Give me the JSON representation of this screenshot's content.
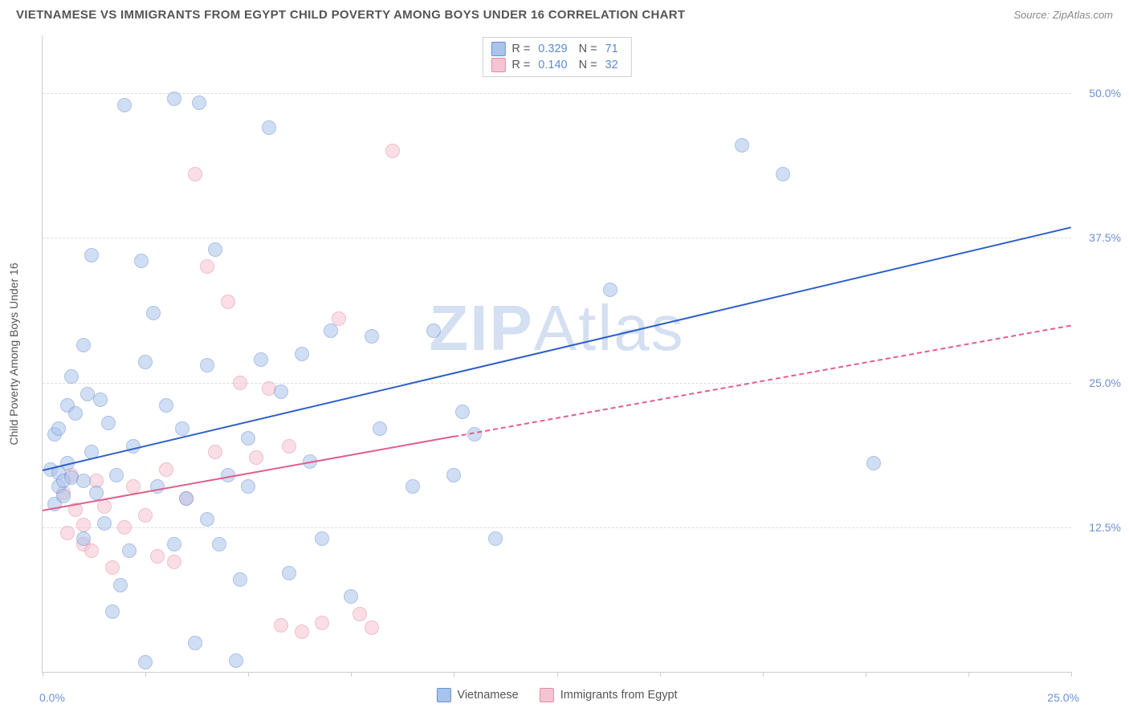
{
  "header": {
    "title": "VIETNAMESE VS IMMIGRANTS FROM EGYPT CHILD POVERTY AMONG BOYS UNDER 16 CORRELATION CHART",
    "source": "Source: ZipAtlas.com"
  },
  "chart": {
    "type": "scatter",
    "background_color": "#ffffff",
    "grid_color": "#dddddd",
    "axis_color": "#cccccc",
    "tick_label_color": "#6b8fd4",
    "axis_title_color": "#555555",
    "y_axis_title": "Child Poverty Among Boys Under 16",
    "xlim": [
      0,
      25
    ],
    "ylim": [
      0,
      55
    ],
    "x_ticks": [
      0,
      2.5,
      5,
      7.5,
      10,
      12.5,
      15,
      17.5,
      20,
      22.5,
      25
    ],
    "x_origin_label": "0.0%",
    "x_max_label": "25.0%",
    "y_gridlines": [
      12.5,
      25.0,
      37.5,
      50.0
    ],
    "y_tick_labels": [
      "12.5%",
      "25.0%",
      "37.5%",
      "50.0%"
    ],
    "point_radius": 9,
    "point_opacity": 0.55,
    "font_family": "Arial, sans-serif",
    "title_fontsize": 15,
    "label_fontsize": 14
  },
  "series": {
    "vietnamese": {
      "label": "Vietnamese",
      "fill_color": "#a9c4eb",
      "stroke_color": "#6b8fd4",
      "trend_color": "#2e5fc9",
      "trend_width": 2.5,
      "trend": {
        "x1": 0,
        "y1": 17.5,
        "x2": 25,
        "y2": 38.5,
        "dashed_from_x": null
      },
      "R": "0.329",
      "N": "71",
      "points": [
        [
          0.2,
          17.5
        ],
        [
          0.3,
          14.5
        ],
        [
          0.3,
          20.5
        ],
        [
          0.4,
          16.0
        ],
        [
          0.4,
          17.2
        ],
        [
          0.4,
          21.0
        ],
        [
          0.5,
          15.2
        ],
        [
          0.5,
          16.5
        ],
        [
          0.6,
          18.0
        ],
        [
          0.6,
          23.0
        ],
        [
          0.7,
          25.5
        ],
        [
          0.7,
          16.8
        ],
        [
          0.8,
          22.3
        ],
        [
          1.0,
          28.2
        ],
        [
          1.0,
          16.5
        ],
        [
          1.0,
          11.5
        ],
        [
          1.1,
          24.0
        ],
        [
          1.2,
          36.0
        ],
        [
          1.2,
          19.0
        ],
        [
          1.3,
          15.5
        ],
        [
          1.4,
          23.5
        ],
        [
          1.5,
          12.8
        ],
        [
          1.6,
          21.5
        ],
        [
          1.7,
          5.2
        ],
        [
          1.8,
          17.0
        ],
        [
          2.0,
          49.0
        ],
        [
          2.1,
          10.5
        ],
        [
          2.2,
          19.5
        ],
        [
          2.4,
          35.5
        ],
        [
          2.5,
          26.8
        ],
        [
          2.5,
          0.8
        ],
        [
          2.7,
          31.0
        ],
        [
          3.0,
          23.0
        ],
        [
          3.2,
          49.5
        ],
        [
          3.2,
          11.0
        ],
        [
          3.4,
          21.0
        ],
        [
          3.5,
          15.0
        ],
        [
          3.7,
          2.5
        ],
        [
          3.8,
          49.2
        ],
        [
          4.0,
          26.5
        ],
        [
          4.0,
          13.2
        ],
        [
          4.3,
          11.0
        ],
        [
          4.5,
          17.0
        ],
        [
          4.7,
          1.0
        ],
        [
          4.8,
          8.0
        ],
        [
          5.0,
          16.0
        ],
        [
          5.0,
          20.2
        ],
        [
          5.3,
          27.0
        ],
        [
          5.5,
          47.0
        ],
        [
          5.8,
          24.2
        ],
        [
          6.0,
          8.5
        ],
        [
          6.3,
          27.5
        ],
        [
          6.5,
          18.2
        ],
        [
          6.8,
          11.5
        ],
        [
          7.0,
          29.5
        ],
        [
          7.5,
          6.5
        ],
        [
          8.0,
          29.0
        ],
        [
          8.2,
          21.0
        ],
        [
          9.0,
          16.0
        ],
        [
          9.5,
          29.5
        ],
        [
          10.0,
          17.0
        ],
        [
          10.2,
          22.5
        ],
        [
          10.5,
          20.5
        ],
        [
          11.0,
          11.5
        ],
        [
          13.8,
          33.0
        ],
        [
          17.0,
          45.5
        ],
        [
          18.0,
          43.0
        ],
        [
          20.2,
          18.0
        ],
        [
          4.2,
          36.5
        ],
        [
          2.8,
          16.0
        ],
        [
          1.9,
          7.5
        ]
      ]
    },
    "egypt": {
      "label": "Immigants from Egypt",
      "label_display": "Immigrants from Egypt",
      "fill_color": "#f5c4d2",
      "stroke_color": "#e48aa4",
      "trend_color": "#e06088",
      "trend_width": 2,
      "trend": {
        "x1": 0,
        "y1": 14.0,
        "x2": 25,
        "y2": 30.0,
        "dashed_from_x": 10.0
      },
      "R": "0.140",
      "N": "32",
      "points": [
        [
          0.5,
          15.5
        ],
        [
          0.6,
          12.0
        ],
        [
          0.7,
          17.0
        ],
        [
          0.8,
          14.0
        ],
        [
          1.0,
          11.0
        ],
        [
          1.0,
          12.7
        ],
        [
          1.2,
          10.5
        ],
        [
          1.3,
          16.5
        ],
        [
          1.5,
          14.3
        ],
        [
          1.7,
          9.0
        ],
        [
          2.0,
          12.5
        ],
        [
          2.2,
          16.0
        ],
        [
          2.5,
          13.5
        ],
        [
          2.8,
          10.0
        ],
        [
          3.0,
          17.5
        ],
        [
          3.2,
          9.5
        ],
        [
          3.5,
          15.0
        ],
        [
          3.7,
          43.0
        ],
        [
          4.0,
          35.0
        ],
        [
          4.2,
          19.0
        ],
        [
          4.5,
          32.0
        ],
        [
          4.8,
          25.0
        ],
        [
          5.2,
          18.5
        ],
        [
          5.5,
          24.5
        ],
        [
          5.8,
          4.0
        ],
        [
          6.0,
          19.5
        ],
        [
          6.3,
          3.5
        ],
        [
          6.8,
          4.2
        ],
        [
          7.2,
          30.5
        ],
        [
          7.7,
          5.0
        ],
        [
          8.0,
          3.8
        ],
        [
          8.5,
          45.0
        ]
      ]
    }
  },
  "legend_stats": {
    "R_label": "R =",
    "N_label": "N ="
  },
  "watermark": {
    "part1": "ZIP",
    "part2": "Atlas"
  }
}
